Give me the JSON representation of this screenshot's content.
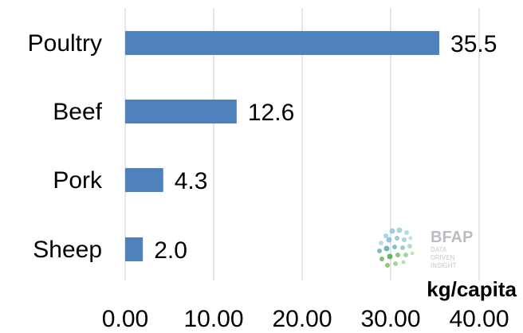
{
  "chart_data": {
    "type": "bar",
    "orientation": "horizontal",
    "categories": [
      "Poultry",
      "Beef",
      "Pork",
      "Sheep"
    ],
    "values": [
      35.5,
      12.6,
      4.3,
      2.0
    ],
    "value_labels": [
      "35.5",
      "12.6",
      "4.3",
      "2.0"
    ],
    "xlim": [
      0,
      40
    ],
    "x_ticks": [
      "0.00",
      "10.00",
      "20.00",
      "30.00",
      "40.00"
    ],
    "xlabel": "kg/capita",
    "grid": "vertical",
    "bar_color": "#4f81bd",
    "grid_color": "#d9d9d9"
  },
  "logo": {
    "title": "BFAP",
    "tagline": [
      "DATA",
      "DRIVEN",
      "INSIGHT"
    ]
  }
}
